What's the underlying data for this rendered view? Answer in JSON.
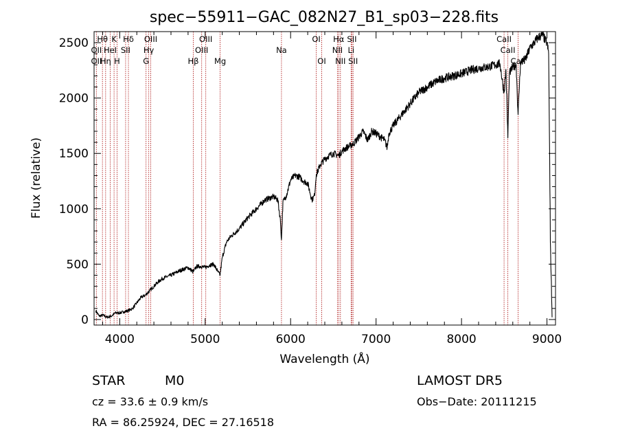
{
  "chart_data": {
    "type": "line",
    "title": "spec−55911−GAC_082N27_B1_sp03−228.fits",
    "xlabel": "Wavelength (Å)",
    "ylabel": "Flux (relative)",
    "xlim": [
      3700,
      9100
    ],
    "ylim": [
      -50,
      2600
    ],
    "x_ticks": [
      4000,
      5000,
      6000,
      7000,
      8000,
      9000
    ],
    "x_tick_labels": [
      "4000",
      "5000",
      "6000",
      "7000",
      "8000",
      "9000"
    ],
    "y_ticks": [
      0,
      500,
      1000,
      1500,
      2000,
      2500
    ],
    "y_tick_labels": [
      "0",
      "500",
      "1000",
      "1500",
      "2000",
      "2500"
    ],
    "line_color": "#000000",
    "marker_color": "#b22222",
    "grid": false,
    "series": [
      {
        "x": [
          3720,
          3760,
          3800,
          3850,
          3900,
          3950,
          4000,
          4050,
          4100,
          4150,
          4200,
          4250,
          4300,
          4350,
          4400,
          4450,
          4500,
          4600,
          4700,
          4800,
          4860,
          4900,
          4950,
          5000,
          5050,
          5100,
          5150,
          5175,
          5200,
          5250,
          5300,
          5400,
          5500,
          5600,
          5700,
          5800,
          5850,
          5880,
          5893,
          5910,
          5950,
          6000,
          6050,
          6100,
          6150,
          6200,
          6250,
          6280,
          6300,
          6350,
          6400,
          6450,
          6500,
          6563,
          6600,
          6650,
          6700,
          6750,
          6800,
          6850,
          6900,
          6950,
          7000,
          7050,
          7100,
          7130,
          7150,
          7200,
          7300,
          7400,
          7500,
          7600,
          7700,
          7800,
          7900,
          8000,
          8100,
          8200,
          8300,
          8400,
          8450,
          8498,
          8520,
          8542,
          8560,
          8600,
          8640,
          8662,
          8690,
          8750,
          8800,
          8850,
          8900,
          8950,
          8980,
          9000,
          9020,
          9040,
          9060
        ],
        "y": [
          80,
          30,
          40,
          20,
          30,
          60,
          60,
          70,
          80,
          100,
          150,
          200,
          220,
          260,
          300,
          340,
          370,
          400,
          440,
          470,
          430,
          480,
          480,
          470,
          490,
          500,
          430,
          400,
          560,
          700,
          750,
          820,
          920,
          1000,
          1080,
          1110,
          1080,
          900,
          720,
          1060,
          1120,
          1260,
          1300,
          1290,
          1250,
          1230,
          1080,
          1120,
          1310,
          1400,
          1450,
          1480,
          1500,
          1480,
          1520,
          1550,
          1570,
          1600,
          1650,
          1700,
          1620,
          1700,
          1680,
          1650,
          1620,
          1550,
          1680,
          1750,
          1850,
          1950,
          2050,
          2100,
          2150,
          2180,
          2200,
          2220,
          2250,
          2270,
          2280,
          2300,
          2310,
          2050,
          2260,
          1640,
          2220,
          2280,
          2300,
          1850,
          2320,
          2350,
          2450,
          2500,
          2550,
          2570,
          2520,
          2500,
          2400,
          700,
          20
        ]
      }
    ],
    "line_markers": [
      {
        "label": "Hθ",
        "x": 3798,
        "row": 0
      },
      {
        "label": "K",
        "x": 3934,
        "row": 0
      },
      {
        "label": "Hδ",
        "x": 4102,
        "row": 0
      },
      {
        "label": "OIII",
        "x": 4363,
        "row": 0
      },
      {
        "label": "OIII",
        "x": 5007,
        "row": 0
      },
      {
        "label": "OI",
        "x": 6300,
        "row": 0
      },
      {
        "label": "Hα",
        "x": 6563,
        "row": 0
      },
      {
        "label": "SII",
        "x": 6717,
        "row": 0
      },
      {
        "label": "CaII",
        "x": 8498,
        "row": 0
      },
      {
        "label": "OII",
        "x": 3727,
        "row": 1
      },
      {
        "label": "HeI",
        "x": 3889,
        "row": 1
      },
      {
        "label": "SII",
        "x": 4069,
        "row": 1
      },
      {
        "label": "Hγ",
        "x": 4340,
        "row": 1
      },
      {
        "label": "OIII",
        "x": 4959,
        "row": 1
      },
      {
        "label": "Na",
        "x": 5893,
        "row": 1
      },
      {
        "label": "NII",
        "x": 6548,
        "row": 1
      },
      {
        "label": "Li",
        "x": 6708,
        "row": 1
      },
      {
        "label": "CaII",
        "x": 8542,
        "row": 1
      },
      {
        "label": "OII",
        "x": 3727,
        "row": 2
      },
      {
        "label": "Hη",
        "x": 3835,
        "row": 2
      },
      {
        "label": "H",
        "x": 3969,
        "row": 2
      },
      {
        "label": "G",
        "x": 4308,
        "row": 2
      },
      {
        "label": "Hβ",
        "x": 4861,
        "row": 2
      },
      {
        "label": "Mg",
        "x": 5175,
        "row": 2
      },
      {
        "label": "OI",
        "x": 6364,
        "row": 2
      },
      {
        "label": "NII",
        "x": 6583,
        "row": 2
      },
      {
        "label": "SII",
        "x": 6731,
        "row": 2
      },
      {
        "label": "CaII",
        "x": 8662,
        "row": 2
      }
    ]
  },
  "info": {
    "class": "STAR",
    "subclass": "M0",
    "survey": "LAMOST DR5",
    "cz": "cz = 33.6 ± 0.9 km/s",
    "obs_date": "Obs−Date: 20111215",
    "coords": "RA =  86.25924, DEC =  27.16518"
  }
}
